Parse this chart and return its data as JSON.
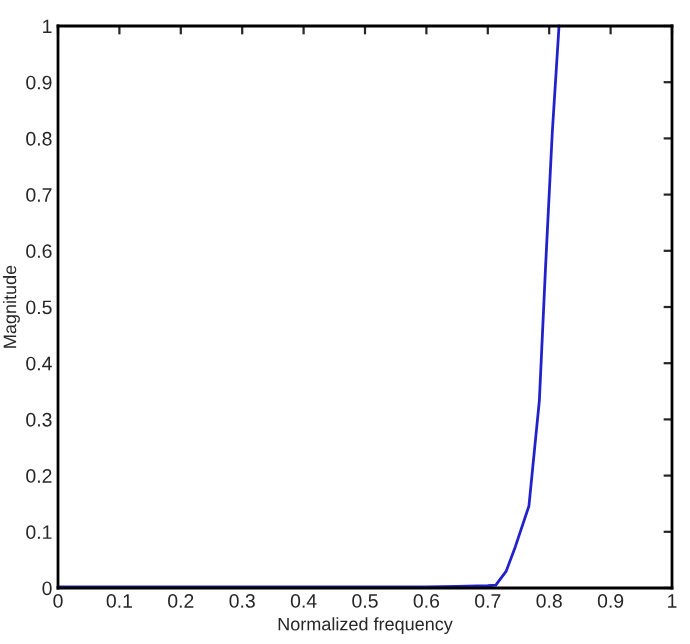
{
  "chart_data": {
    "type": "line",
    "xlabel": "Normalized frequency",
    "ylabel": "Magnitude",
    "series": [
      {
        "color": "#2222cc",
        "x": [
          0,
          0.1,
          0.2,
          0.3,
          0.4,
          0.5,
          0.6,
          0.65,
          0.7,
          0.713,
          0.73,
          0.745,
          0.767,
          0.784,
          0.794,
          0.805,
          0.816
        ],
        "values": [
          0.002,
          0.002,
          0.002,
          0.002,
          0.002,
          0.002,
          0.002,
          0.003,
          0.004,
          0.005,
          0.03,
          0.074,
          0.146,
          0.334,
          0.57,
          0.81,
          1.0
        ]
      }
    ],
    "xlim": [
      0,
      1
    ],
    "ylim": [
      0,
      1
    ],
    "xticks": [
      0,
      0.1,
      0.2,
      0.3,
      0.4,
      0.5,
      0.6,
      0.7,
      0.8,
      0.9,
      1
    ],
    "yticks": [
      0,
      0.1,
      0.2,
      0.3,
      0.4,
      0.5,
      0.6,
      0.7,
      0.8,
      0.9,
      1
    ],
    "grid": false,
    "legend": false,
    "marker": "none",
    "line_style": "solid"
  }
}
